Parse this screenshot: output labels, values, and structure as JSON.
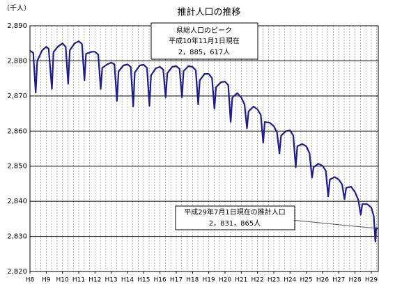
{
  "chart_data": {
    "type": "line",
    "title": "推計人口の推移",
    "y_label": "（千人）",
    "x": [
      8.0,
      8.2,
      8.35,
      8.45,
      8.75,
      9.0,
      9.15,
      9.35,
      9.45,
      9.7,
      10.0,
      10.2,
      10.35,
      10.45,
      10.75,
      11.0,
      11.2,
      11.35,
      11.45,
      11.8,
      12.0,
      12.2,
      12.35,
      12.45,
      12.75,
      13.0,
      13.2,
      13.35,
      13.45,
      13.75,
      14.0,
      14.2,
      14.35,
      14.45,
      14.75,
      15.0,
      15.2,
      15.35,
      15.45,
      15.75,
      16.0,
      16.2,
      16.35,
      16.45,
      16.75,
      17.0,
      17.2,
      17.35,
      17.45,
      17.75,
      18.0,
      18.2,
      18.35,
      18.45,
      18.75,
      19.0,
      19.2,
      19.35,
      19.45,
      19.75,
      20.0,
      20.2,
      20.35,
      20.45,
      20.75,
      21.0,
      21.2,
      21.35,
      21.45,
      21.75,
      22.0,
      22.2,
      22.35,
      22.45,
      22.75,
      23.0,
      23.2,
      23.35,
      23.45,
      23.75,
      24.0,
      24.2,
      24.35,
      24.45,
      24.75,
      25.0,
      25.2,
      25.35,
      25.45,
      25.75,
      26.0,
      26.2,
      26.35,
      26.45,
      26.75,
      27.0,
      27.2,
      27.35,
      27.45,
      27.75,
      28.0,
      28.2,
      28.35,
      28.45,
      28.75,
      29.0,
      29.15,
      29.25,
      29.3,
      29.4
    ],
    "series": [
      {
        "name": "推計人口",
        "color": "#1c1c8c",
        "values": [
          2882.9,
          2882.3,
          2871.0,
          2880.0,
          2883.0,
          2884.0,
          2883.5,
          2872.0,
          2882.5,
          2884.0,
          2885.0,
          2884.0,
          2873.5,
          2883.0,
          2885.0,
          2885.6,
          2884.8,
          2874.5,
          2882.0,
          2882.6,
          2882.6,
          2881.8,
          2872.0,
          2878.0,
          2879.0,
          2879.5,
          2879.0,
          2868.6,
          2877.0,
          2878.7,
          2879.0,
          2878.3,
          2867.0,
          2876.7,
          2878.7,
          2878.9,
          2878.0,
          2867.2,
          2875.9,
          2877.9,
          2878.3,
          2877.5,
          2869.6,
          2876.5,
          2878.3,
          2878.5,
          2877.7,
          2869.6,
          2877.1,
          2878.5,
          2878.3,
          2877.3,
          2867.6,
          2874.5,
          2876.3,
          2876.3,
          2875.1,
          2866.4,
          2872.5,
          2873.9,
          2874.1,
          2873.1,
          2862.6,
          2869.6,
          2870.8,
          2869.6,
          2867.6,
          2860.8,
          2865.6,
          2867.0,
          2866.2,
          2864.6,
          2856.7,
          2862.6,
          2862.4,
          2861.4,
          2859.6,
          2853.7,
          2858.7,
          2860.0,
          2860.2,
          2858.7,
          2849.7,
          2855.7,
          2856.3,
          2855.7,
          2853.7,
          2846.7,
          2849.7,
          2850.7,
          2850.1,
          2848.7,
          2841.4,
          2846.2,
          2846.9,
          2846.2,
          2844.8,
          2840.6,
          2843.8,
          2844.2,
          2842.6,
          2840.4,
          2836.2,
          2839.2,
          2839.2,
          2838.2,
          2835.8,
          2828.5,
          2832.4,
          2832.2
        ]
      }
    ],
    "xlim": [
      8,
      29.43
    ],
    "xticks": [
      {
        "value": 8,
        "label": "H8"
      },
      {
        "value": 9,
        "label": "H9"
      },
      {
        "value": 10,
        "label": "H10"
      },
      {
        "value": 11,
        "label": "H11"
      },
      {
        "value": 12,
        "label": "H12"
      },
      {
        "value": 13,
        "label": "H13"
      },
      {
        "value": 14,
        "label": "H14"
      },
      {
        "value": 15,
        "label": "H15"
      },
      {
        "value": 16,
        "label": "H16"
      },
      {
        "value": 17,
        "label": "H17"
      },
      {
        "value": 18,
        "label": "H18"
      },
      {
        "value": 19,
        "label": "H19"
      },
      {
        "value": 20,
        "label": "H20"
      },
      {
        "value": 21,
        "label": "H21"
      },
      {
        "value": 22,
        "label": "H22"
      },
      {
        "value": 23,
        "label": "H23"
      },
      {
        "value": 24,
        "label": "H24"
      },
      {
        "value": 25,
        "label": "H25"
      },
      {
        "value": 26,
        "label": "H26"
      },
      {
        "value": 27,
        "label": "H27"
      },
      {
        "value": 28,
        "label": "H28"
      },
      {
        "value": 29,
        "label": "H29"
      }
    ],
    "ylim": [
      2820,
      2890
    ],
    "yticks": [
      {
        "value": 2820,
        "label": "2,820"
      },
      {
        "value": 2830,
        "label": "2,830"
      },
      {
        "value": 2840,
        "label": "2,840"
      },
      {
        "value": 2850,
        "label": "2,850"
      },
      {
        "value": 2860,
        "label": "2,860"
      },
      {
        "value": 2870,
        "label": "2,870"
      },
      {
        "value": 2880,
        "label": "2,880"
      },
      {
        "value": 2890,
        "label": "2,890"
      }
    ],
    "grid": true,
    "annotations": [
      {
        "lines": [
          "県総人口のピーク",
          "平成10年11月1日現在",
          "2，885，617人"
        ]
      },
      {
        "lines": [
          "平成29年7月1日現在の推計人口",
          "2，831，865人"
        ]
      }
    ]
  }
}
